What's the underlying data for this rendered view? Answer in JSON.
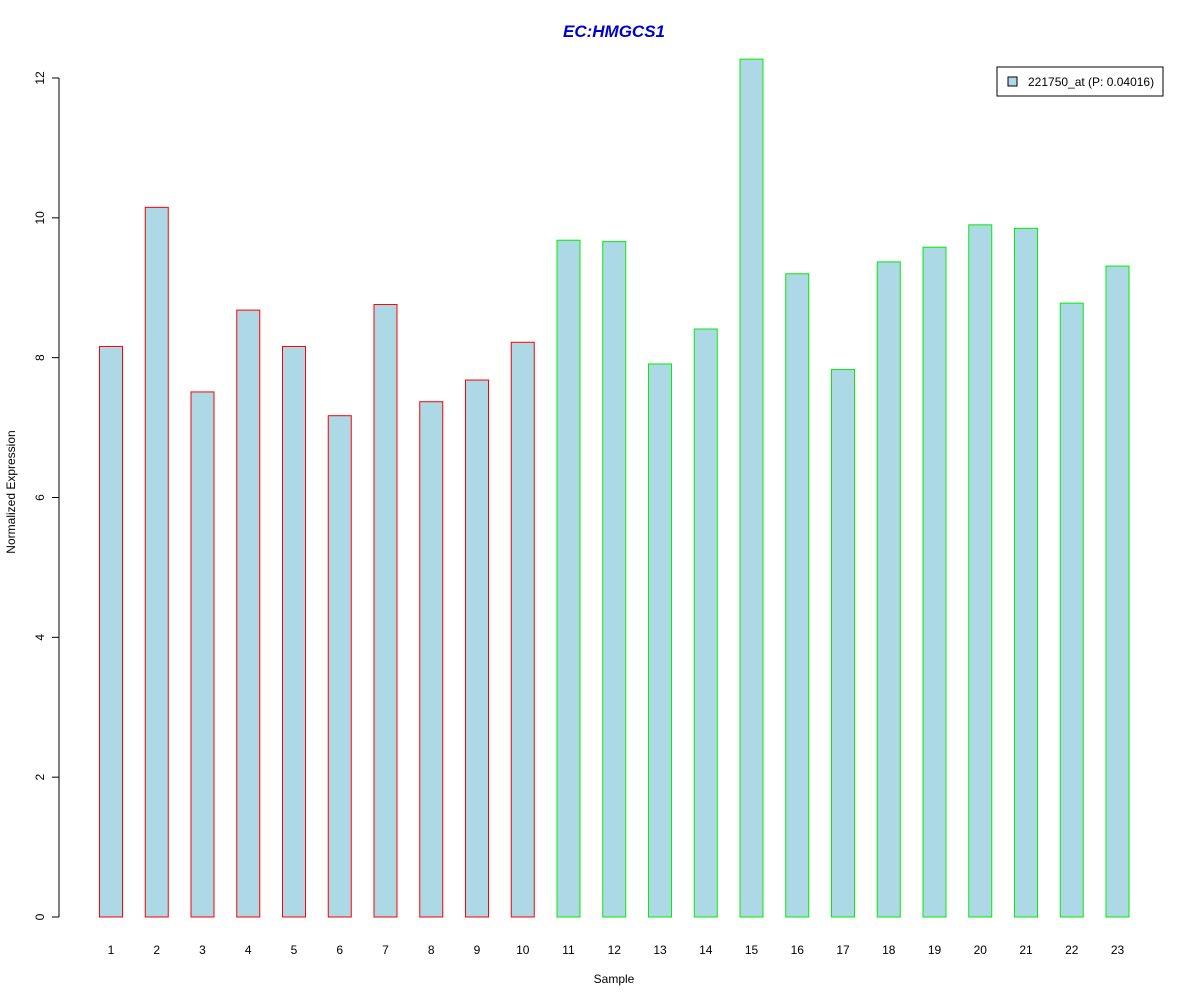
{
  "chart_data": {
    "type": "bar",
    "title": "EC:HMGCS1",
    "xlabel": "Sample",
    "ylabel": "Normalized Expression",
    "ylim": [
      0,
      12.3
    ],
    "yticks": [
      0,
      2,
      4,
      6,
      8,
      10,
      12
    ],
    "categories": [
      "1",
      "2",
      "3",
      "4",
      "5",
      "6",
      "7",
      "8",
      "9",
      "10",
      "11",
      "12",
      "13",
      "14",
      "15",
      "16",
      "17",
      "18",
      "19",
      "20",
      "21",
      "22",
      "23"
    ],
    "values": [
      8.16,
      10.15,
      7.51,
      8.68,
      8.16,
      7.17,
      8.76,
      7.37,
      7.68,
      8.22,
      9.68,
      9.66,
      7.91,
      8.41,
      12.27,
      9.2,
      7.83,
      9.37,
      9.58,
      9.9,
      9.85,
      8.78,
      9.31
    ],
    "groups": [
      1,
      1,
      1,
      1,
      1,
      1,
      1,
      1,
      1,
      1,
      2,
      2,
      2,
      2,
      2,
      2,
      2,
      2,
      2,
      2,
      2,
      2,
      2
    ],
    "group_border_colors": {
      "1": "#ff0000",
      "2": "#00ee00"
    },
    "bar_fill": "#add8e6",
    "title_color": "#0000cd",
    "grid": false,
    "legend": {
      "placement": "top-right",
      "entries": [
        {
          "label": "221750_at (P: 0.04016)",
          "color": "#add8e6"
        }
      ]
    }
  }
}
